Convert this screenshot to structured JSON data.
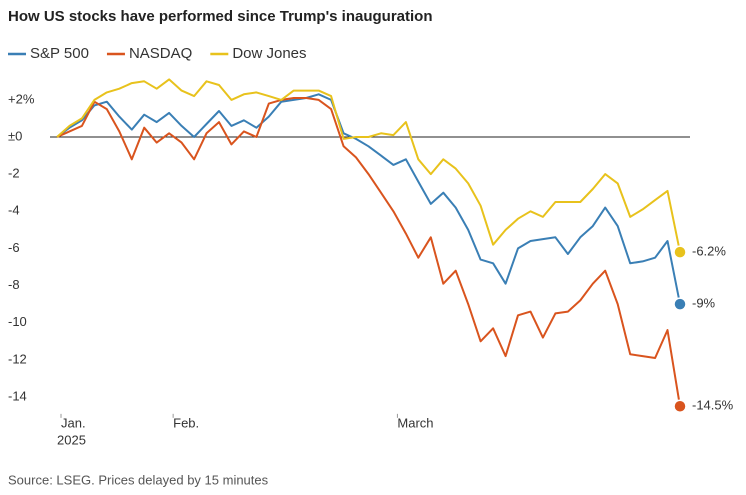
{
  "chart_data": {
    "type": "line",
    "title": "How US stocks have performed since Trump's inauguration",
    "source": "Source: LSEG. Prices delayed by 15 minutes",
    "x": [
      0,
      1,
      2,
      3,
      4,
      5,
      6,
      7,
      8,
      9,
      10,
      11,
      12,
      13,
      14,
      15,
      16,
      17,
      18,
      19,
      20,
      21,
      22,
      23,
      24,
      25,
      26,
      27,
      28,
      29,
      30,
      31,
      32,
      33,
      34,
      35,
      36,
      37,
      38,
      39,
      40,
      41,
      42,
      43,
      44,
      45,
      46,
      47,
      48,
      49,
      50
    ],
    "xlim": [
      0,
      50
    ],
    "xticks": [
      {
        "value": 0,
        "label": "Jan."
      },
      {
        "value": 9,
        "label": "Feb."
      },
      {
        "value": 27,
        "label": "March"
      }
    ],
    "x_year_label": "2025",
    "ylim": [
      -14.8,
      3.3
    ],
    "yticks": [
      {
        "value": 2,
        "label": "+2%"
      },
      {
        "value": 0,
        "label": "±0"
      },
      -2,
      -4,
      -6,
      -8,
      -10,
      -12,
      -14
    ],
    "series": [
      {
        "name": "S&P 500",
        "color": "#3a7fb5",
        "end_label": "-9%",
        "values": [
          0,
          0.5,
          0.9,
          1.7,
          1.9,
          1.1,
          0.4,
          1.2,
          0.8,
          1.3,
          0.6,
          0,
          0.7,
          1.4,
          0.6,
          0.9,
          0.5,
          1.1,
          1.9,
          2.0,
          2.1,
          2.3,
          2.0,
          0.2,
          -0.1,
          -0.5,
          -1.0,
          -1.5,
          -1.2,
          -2.4,
          -3.6,
          -3.0,
          -3.8,
          -5.0,
          -6.6,
          -6.8,
          -7.9,
          -6.0,
          -5.6,
          -5.5,
          -5.4,
          -6.3,
          -5.4,
          -4.8,
          -3.8,
          -4.8,
          -6.8,
          -6.7,
          -6.5,
          -5.6,
          -9.0
        ]
      },
      {
        "name": "NASDAQ",
        "color": "#d9541e",
        "end_label": "-14.5%",
        "values": [
          0,
          0.3,
          0.6,
          1.9,
          1.5,
          0.3,
          -1.2,
          0.5,
          -0.3,
          0.2,
          -0.3,
          -1.2,
          0.2,
          0.8,
          -0.4,
          0.3,
          0.0,
          1.8,
          2.0,
          2.1,
          2.1,
          2.0,
          1.5,
          -0.5,
          -1.1,
          -2.0,
          -3.0,
          -4.0,
          -5.2,
          -6.5,
          -5.4,
          -7.9,
          -7.2,
          -9.0,
          -11.0,
          -10.3,
          -11.8,
          -9.6,
          -9.4,
          -10.8,
          -9.5,
          -9.4,
          -8.8,
          -7.9,
          -7.2,
          -9.0,
          -11.7,
          -11.8,
          -11.9,
          -10.4,
          -14.5
        ]
      },
      {
        "name": "Dow Jones",
        "color": "#e8c21c",
        "end_label": "-6.2%",
        "values": [
          0,
          0.6,
          1.0,
          2.0,
          2.4,
          2.6,
          2.9,
          3.0,
          2.6,
          3.1,
          2.5,
          2.2,
          3.0,
          2.8,
          2.0,
          2.3,
          2.4,
          2.2,
          2.0,
          2.5,
          2.5,
          2.5,
          2.2,
          -0.1,
          0.0,
          0.0,
          0.2,
          0.1,
          0.8,
          -1.2,
          -2.0,
          -1.2,
          -1.7,
          -2.5,
          -3.7,
          -5.8,
          -5.0,
          -4.4,
          -4.0,
          -4.3,
          -3.5,
          -3.5,
          -3.5,
          -2.8,
          -2.0,
          -2.5,
          -4.3,
          -3.9,
          -3.4,
          -2.9,
          -6.2
        ]
      }
    ]
  }
}
